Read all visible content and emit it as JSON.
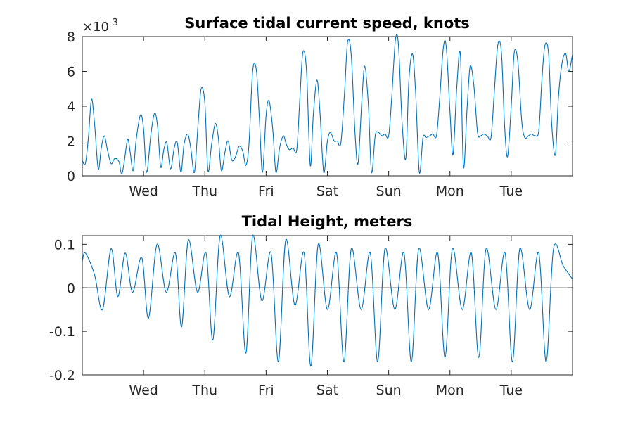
{
  "chart_data": [
    {
      "type": "line",
      "title": "Surface tidal current speed, knots",
      "exponent_label": {
        "base": "×10",
        "power": "-3"
      },
      "xlabel": "",
      "ylabel": "",
      "xlim": [
        0,
        8
      ],
      "ylim": [
        0,
        8
      ],
      "yticks": [
        0,
        2,
        4,
        6,
        8
      ],
      "ytick_labels": [
        "0",
        "2",
        "4",
        "6",
        "8"
      ],
      "xticks": [
        1,
        2,
        3,
        4,
        5,
        6,
        7
      ],
      "xtick_labels": [
        "Wed",
        "Thu",
        "Fri",
        "Sat",
        "Sun",
        "Mon",
        "Tue"
      ],
      "grid": false,
      "series": [
        {
          "color": "#0072BD",
          "x": [
            0.0,
            0.05,
            0.1,
            0.15,
            0.2,
            0.26,
            0.31,
            0.36,
            0.41,
            0.47,
            0.53,
            0.6,
            0.64,
            0.68,
            0.74,
            0.78,
            0.83,
            0.88,
            0.95,
            1.0,
            1.05,
            1.12,
            1.18,
            1.23,
            1.28,
            1.33,
            1.38,
            1.44,
            1.5,
            1.55,
            1.61,
            1.66,
            1.72,
            1.77,
            1.83,
            1.89,
            1.94,
            2.0,
            2.05,
            2.11,
            2.17,
            2.22,
            2.27,
            2.33,
            2.38,
            2.44,
            2.5,
            2.56,
            2.62,
            2.67,
            2.72,
            2.78,
            2.84,
            2.89,
            2.94,
            3.0,
            3.05,
            3.11,
            3.16,
            3.22,
            3.28,
            3.33,
            3.38,
            3.44,
            3.5,
            3.55,
            3.6,
            3.66,
            3.72,
            3.77,
            3.83,
            3.88,
            3.94,
            4.0,
            4.05,
            4.11,
            4.16,
            4.22,
            4.28,
            4.33,
            4.39,
            4.45,
            4.5,
            4.56,
            4.61,
            4.67,
            4.72,
            4.78,
            4.83,
            4.89,
            4.94,
            5.0,
            5.05,
            5.11,
            5.16,
            5.22,
            5.28,
            5.33,
            5.39,
            5.44,
            5.5,
            5.56,
            5.61,
            5.67,
            5.72,
            5.78,
            5.83,
            5.89,
            5.94,
            6.0,
            6.05,
            6.11,
            6.17,
            6.22,
            6.28,
            6.33,
            6.39,
            6.45,
            6.5,
            6.55,
            6.61,
            6.67,
            6.72,
            6.78,
            6.84,
            6.89,
            6.94,
            7.0,
            7.05,
            7.11,
            7.17,
            7.22,
            7.28,
            7.33,
            7.39,
            7.45,
            7.5,
            7.55,
            7.61,
            7.66,
            7.72,
            7.77,
            7.83,
            7.89,
            7.94,
            8.0
          ],
          "y": [
            0.9,
            0.7,
            2.2,
            4.4,
            3.0,
            0.4,
            1.6,
            2.3,
            1.5,
            0.7,
            1.0,
            0.8,
            0.1,
            0.7,
            2.1,
            1.4,
            0.3,
            2.1,
            3.5,
            2.7,
            0.2,
            2.4,
            3.6,
            2.8,
            0.5,
            1.5,
            1.9,
            0.4,
            1.6,
            1.9,
            0.2,
            1.8,
            2.4,
            1.6,
            0.2,
            3.0,
            5.0,
            4.2,
            0.3,
            1.8,
            3.0,
            2.2,
            0.3,
            1.4,
            2.0,
            0.9,
            1.1,
            1.7,
            1.4,
            0.6,
            1.8,
            6.0,
            6.1,
            3.3,
            0.2,
            3.5,
            4.3,
            2.6,
            0.2,
            1.6,
            2.3,
            1.8,
            1.5,
            1.6,
            1.5,
            4.4,
            7.1,
            6.0,
            0.6,
            3.5,
            5.5,
            3.6,
            0.2,
            2.0,
            2.5,
            2.0,
            2.0,
            1.9,
            4.8,
            7.7,
            6.9,
            2.5,
            0.7,
            4.2,
            6.3,
            4.0,
            0.2,
            2.3,
            2.5,
            2.3,
            2.4,
            2.3,
            4.5,
            7.8,
            7.5,
            3.0,
            1.0,
            5.5,
            7.0,
            4.8,
            0.2,
            2.2,
            2.2,
            2.3,
            2.4,
            2.3,
            4.3,
            7.3,
            7.4,
            3.7,
            1.2,
            5.0,
            7.0,
            0.5,
            3.9,
            6.3,
            5.2,
            2.5,
            2.3,
            2.4,
            2.3,
            2.2,
            4.6,
            7.5,
            7.1,
            3.0,
            1.1,
            4.0,
            7.1,
            6.5,
            3.2,
            2.2,
            2.3,
            2.4,
            2.3,
            2.6,
            5.5,
            7.5,
            7.0,
            3.0,
            1.2,
            4.5,
            6.5,
            7.0,
            6.0,
            7.0
          ]
        }
      ]
    },
    {
      "type": "line",
      "title": "Tidal Height, meters",
      "xlabel": "",
      "ylabel": "",
      "xlim": [
        0,
        8
      ],
      "ylim": [
        -0.2,
        0.12
      ],
      "yticks": [
        -0.2,
        -0.1,
        0,
        0.1
      ],
      "ytick_labels": [
        "-0.2",
        "-0.1",
        "0",
        "0.1"
      ],
      "xticks": [
        1,
        2,
        3,
        4,
        5,
        6,
        7
      ],
      "xtick_labels": [
        "Wed",
        "Thu",
        "Fri",
        "Sat",
        "Sun",
        "Mon",
        "Tue"
      ],
      "grid": false,
      "reference_line_y": 0,
      "series": [
        {
          "color": "#0072BD",
          "x": [
            0.0,
            0.05,
            0.2,
            0.33,
            0.47,
            0.58,
            0.7,
            0.82,
            0.97,
            1.08,
            1.22,
            1.37,
            1.52,
            1.62,
            1.73,
            1.88,
            2.02,
            2.13,
            2.25,
            2.4,
            2.55,
            2.67,
            2.78,
            2.93,
            3.08,
            3.2,
            3.32,
            3.47,
            3.62,
            3.73,
            3.85,
            4.0,
            4.15,
            4.27,
            4.39,
            4.55,
            4.7,
            4.82,
            4.94,
            5.1,
            5.25,
            5.37,
            5.49,
            5.65,
            5.8,
            5.92,
            6.04,
            6.2,
            6.35,
            6.47,
            6.59,
            6.75,
            6.9,
            7.02,
            7.14,
            7.3,
            7.45,
            7.57,
            7.69,
            7.85,
            8.0
          ],
          "y": [
            0.06,
            0.08,
            0.03,
            -0.05,
            0.09,
            -0.02,
            0.08,
            -0.01,
            0.07,
            -0.07,
            0.1,
            -0.01,
            0.08,
            -0.09,
            0.11,
            -0.01,
            0.08,
            -0.12,
            0.12,
            -0.02,
            0.08,
            -0.15,
            0.12,
            -0.03,
            0.08,
            -0.17,
            0.11,
            -0.04,
            0.08,
            -0.18,
            0.1,
            -0.05,
            0.08,
            -0.17,
            0.09,
            -0.05,
            0.08,
            -0.17,
            0.09,
            -0.05,
            0.08,
            -0.17,
            0.09,
            -0.05,
            0.08,
            -0.16,
            0.09,
            -0.05,
            0.08,
            -0.16,
            0.09,
            -0.05,
            0.08,
            -0.17,
            0.09,
            -0.05,
            0.08,
            -0.17,
            0.09,
            0.05,
            0.02
          ]
        }
      ]
    }
  ]
}
